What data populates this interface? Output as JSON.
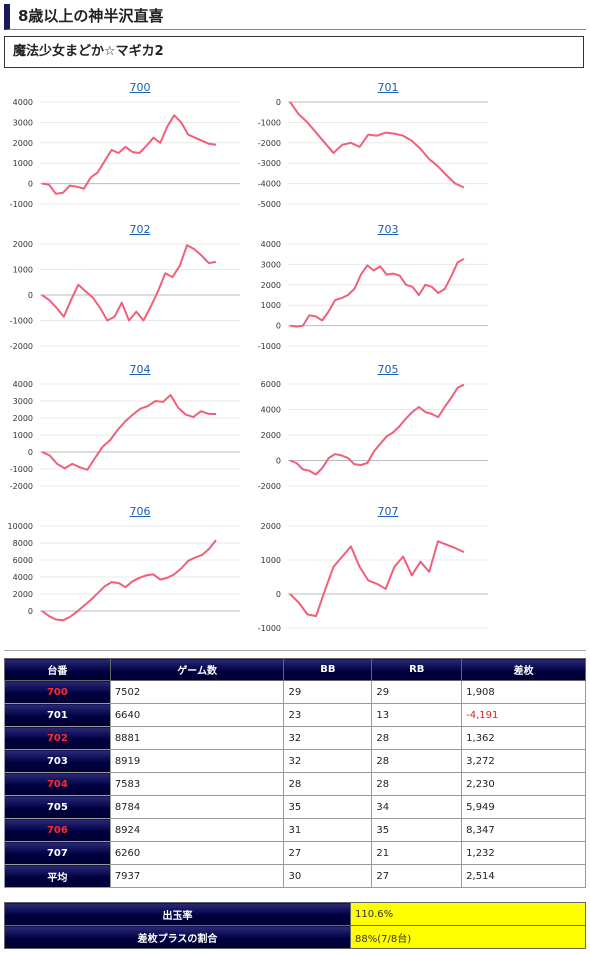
{
  "header": {
    "title": "8歳以上の神半沢直喜"
  },
  "machine": {
    "name": "魔法少女まどか☆マギカ2"
  },
  "chart_data": [
    {
      "type": "line",
      "title": "700",
      "yticks": [
        4000,
        3000,
        2000,
        1000,
        0,
        -1000
      ],
      "ylim": [
        -1000,
        4000
      ],
      "values": [
        0,
        -50,
        -500,
        -450,
        -100,
        -150,
        -250,
        300,
        550,
        1100,
        1650,
        1500,
        1800,
        1550,
        1500,
        1850,
        2250,
        2000,
        2800,
        3350,
        3000,
        2400,
        2250,
        2100,
        1950,
        1900
      ]
    },
    {
      "type": "line",
      "title": "701",
      "yticks": [
        0,
        -1000,
        -2000,
        -3000,
        -4000,
        -5000
      ],
      "ylim": [
        -5000,
        0
      ],
      "values": [
        0,
        -600,
        -1000,
        -1500,
        -2000,
        -2500,
        -2100,
        -2000,
        -2200,
        -1600,
        -1650,
        -1500,
        -1550,
        -1650,
        -1900,
        -2300,
        -2800,
        -3150,
        -3600,
        -4000,
        -4191
      ]
    },
    {
      "type": "line",
      "title": "702",
      "yticks": [
        2000,
        1000,
        0,
        -1000,
        -2000
      ],
      "ylim": [
        -2000,
        2000
      ],
      "values": [
        0,
        -200,
        -500,
        -850,
        -200,
        400,
        150,
        -100,
        -500,
        -1000,
        -850,
        -300,
        -1000,
        -650,
        -1000,
        -450,
        150,
        850,
        700,
        1150,
        1950,
        1800,
        1550,
        1250,
        1300
      ]
    },
    {
      "type": "line",
      "title": "703",
      "yticks": [
        4000,
        3000,
        2000,
        1000,
        0,
        -1000
      ],
      "ylim": [
        -1000,
        4000
      ],
      "values": [
        0,
        -50,
        0,
        500,
        450,
        250,
        700,
        1250,
        1350,
        1500,
        1800,
        2500,
        2950,
        2700,
        2900,
        2500,
        2550,
        2450,
        2000,
        1900,
        1500,
        2000,
        1900,
        1600,
        1800,
        2400,
        3100,
        3272
      ]
    },
    {
      "type": "line",
      "title": "704",
      "yticks": [
        4000,
        3000,
        2000,
        1000,
        0,
        -1000,
        -2000
      ],
      "ylim": [
        -2000,
        4000
      ],
      "values": [
        0,
        -200,
        -700,
        -950,
        -700,
        -900,
        -1050,
        -350,
        300,
        700,
        1300,
        1800,
        2200,
        2550,
        2700,
        3000,
        2950,
        3350,
        2600,
        2200,
        2050,
        2400,
        2250,
        2230
      ]
    },
    {
      "type": "line",
      "title": "705",
      "yticks": [
        6000,
        4000,
        2000,
        0,
        -2000
      ],
      "ylim": [
        -2000,
        6000
      ],
      "values": [
        0,
        -200,
        -700,
        -800,
        -1100,
        -600,
        200,
        500,
        400,
        200,
        -300,
        -350,
        -200,
        700,
        1300,
        1900,
        2200,
        2700,
        3300,
        3800,
        4200,
        3800,
        3650,
        3400,
        4200,
        4900,
        5700,
        5949
      ]
    },
    {
      "type": "line",
      "title": "706",
      "yticks": [
        10000,
        8000,
        6000,
        4000,
        2000,
        0
      ],
      "ylim": [
        -2000,
        10000
      ],
      "values": [
        0,
        -600,
        -1000,
        -1100,
        -700,
        -100,
        600,
        1300,
        2100,
        2900,
        3400,
        3300,
        2800,
        3500,
        3900,
        4200,
        4300,
        3700,
        3900,
        4300,
        5000,
        5900,
        6300,
        6600,
        7300,
        8347
      ]
    },
    {
      "type": "line",
      "title": "707",
      "yticks": [
        2000,
        1000,
        0,
        -1000
      ],
      "ylim": [
        -1000,
        2000
      ],
      "values": [
        0,
        -250,
        -600,
        -650,
        100,
        800,
        1100,
        1400,
        800,
        400,
        300,
        150,
        800,
        1100,
        550,
        950,
        650,
        1550,
        1450,
        1350,
        1232
      ]
    }
  ],
  "table": {
    "headers": [
      "台番",
      "ゲーム数",
      "BB",
      "RB",
      "差枚"
    ],
    "rows": [
      {
        "id": "700",
        "games": "7502",
        "bb": "29",
        "rb": "29",
        "diff": "1,908"
      },
      {
        "id": "701",
        "games": "6640",
        "bb": "23",
        "rb": "13",
        "diff": "-4,191"
      },
      {
        "id": "702",
        "games": "8881",
        "bb": "32",
        "rb": "28",
        "diff": "1,362"
      },
      {
        "id": "703",
        "games": "8919",
        "bb": "32",
        "rb": "28",
        "diff": "3,272"
      },
      {
        "id": "704",
        "games": "7583",
        "bb": "28",
        "rb": "28",
        "diff": "2,230"
      },
      {
        "id": "705",
        "games": "8784",
        "bb": "35",
        "rb": "34",
        "diff": "5,949"
      },
      {
        "id": "706",
        "games": "8924",
        "bb": "31",
        "rb": "35",
        "diff": "8,347"
      },
      {
        "id": "707",
        "games": "6260",
        "bb": "27",
        "rb": "21",
        "diff": "1,232"
      }
    ],
    "average": {
      "label": "平均",
      "games": "7937",
      "bb": "30",
      "rb": "27",
      "diff": "2,514"
    }
  },
  "summary": {
    "payout_label": "出玉率",
    "payout_value": "110.6%",
    "plus_label": "差枚プラスの割合",
    "plus_value": "88%(7/8台)"
  },
  "colors": {
    "line": "#f0607a",
    "header_bg": "#000040",
    "highlight": "#ffff00",
    "red_id": "#ff2a2a"
  }
}
